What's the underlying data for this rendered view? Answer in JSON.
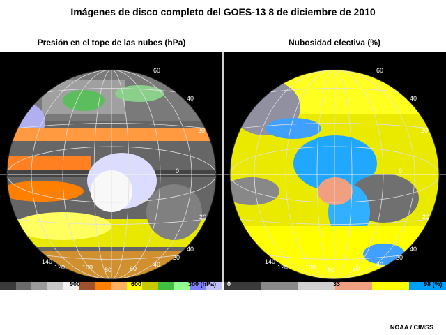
{
  "title": "Imágenes de disco completo del GOES-13  8 de diciembre de 2010",
  "left_panel": {
    "subtitle": "Presión en el tope de las nubes (hPa)",
    "scale_labels": [
      "900",
      "600",
      "300 (hPa)"
    ],
    "colors": [
      "#3a3a3a",
      "#6a6a6a",
      "#9a9a9a",
      "#c8c8c8",
      "#f0f0f0",
      "#a0522d",
      "#ff7f00",
      "#ffb060",
      "#ffff00",
      "#c8c800",
      "#40c040",
      "#90ff90",
      "#8080ff",
      "#c0c0ff"
    ]
  },
  "right_panel": {
    "subtitle": "Nubosidad efectiva (%)",
    "scale_labels": [
      "0",
      "33",
      "98 (%)"
    ],
    "colors": [
      "#3a3a3a",
      "#8a8a8a",
      "#d0d0d0",
      "#f0a080",
      "#ffff00",
      "#00a0ff"
    ]
  },
  "grid_labels": [
    "60",
    "40",
    "20",
    "0",
    "20",
    "40",
    "140",
    "120",
    "100",
    "80",
    "60",
    "40",
    "20"
  ],
  "credit": "NOAA / CIMSS"
}
